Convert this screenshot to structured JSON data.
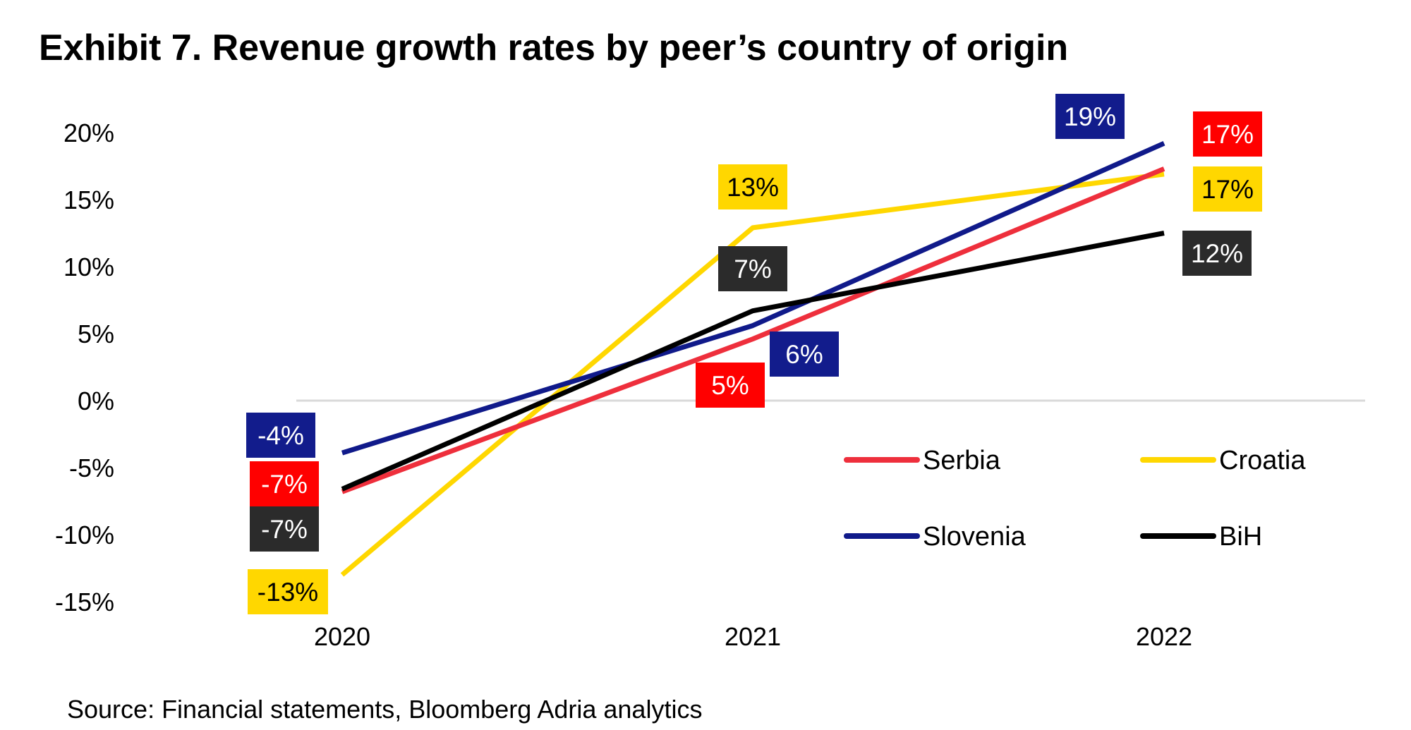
{
  "chart_data": {
    "type": "line",
    "title": "Exhibit 7. Revenue growth rates by peer’s country of origin",
    "x": [
      "2020",
      "2021",
      "2022"
    ],
    "ylim": [
      -15,
      20
    ],
    "yticks": [
      20,
      15,
      10,
      5,
      0,
      -5,
      -10,
      -15
    ],
    "ytick_labels": [
      "20%",
      "15%",
      "10%",
      "5%",
      "0%",
      "-5%",
      "-10%",
      "-15%"
    ],
    "grid": "zero line only",
    "legend_position": "bottom-right",
    "series": [
      {
        "name": "Serbia",
        "color": "#ee2f3c",
        "label_bg": "#ff0000",
        "label_fg": "#ffffff",
        "values": [
          -6.8,
          4.6,
          17.3
        ],
        "labels": [
          "-7%",
          "5%",
          "17%"
        ]
      },
      {
        "name": "Croatia",
        "color": "#ffd700",
        "label_bg": "#ffd700",
        "label_fg": "#000000",
        "values": [
          -13.0,
          12.9,
          16.9
        ],
        "labels": [
          "-13%",
          "13%",
          "17%"
        ]
      },
      {
        "name": "Slovenia",
        "color": "#101a8a",
        "label_bg": "#121c8c",
        "label_fg": "#ffffff",
        "values": [
          -3.9,
          5.6,
          19.2
        ],
        "labels": [
          "-4%",
          "6%",
          "19%"
        ]
      },
      {
        "name": "BiH",
        "color": "#000000",
        "label_bg": "#2b2b2b",
        "label_fg": "#ffffff",
        "values": [
          -6.6,
          6.7,
          12.5
        ],
        "labels": [
          "-7%",
          "7%",
          "12%"
        ]
      }
    ]
  },
  "source": "Source: Financial statements, Bloomberg Adria analytics"
}
